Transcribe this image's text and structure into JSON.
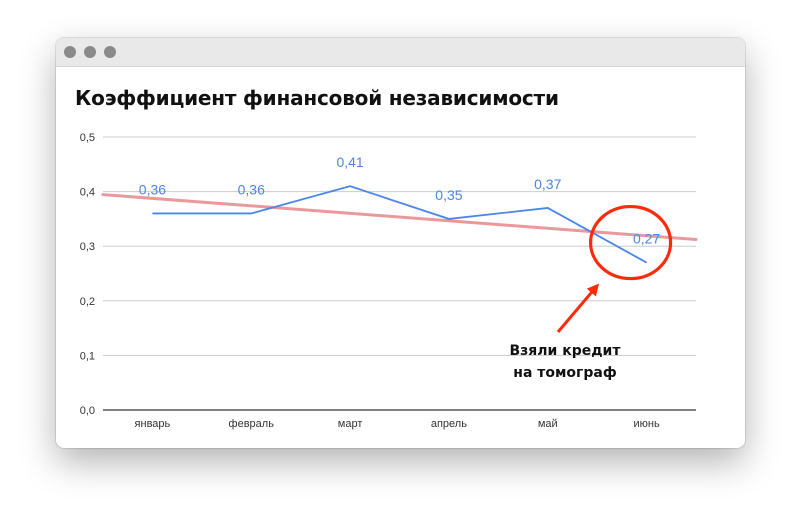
{
  "window": {
    "controls": [
      "close-dot",
      "minimize-dot",
      "zoom-dot"
    ]
  },
  "colors": {
    "series": "#4a86e8",
    "trend": "#e8999c",
    "annotation": "#ff2a0a",
    "grid": "#cccccc",
    "axis": "#333333"
  },
  "chart_data": {
    "type": "line",
    "title": "Коэффициент финансовой независимости",
    "categories": [
      "январь",
      "февраль",
      "март",
      "апрель",
      "май",
      "июнь"
    ],
    "series": [
      {
        "values": [
          0.36,
          0.36,
          0.41,
          0.35,
          0.37,
          0.27
        ],
        "labels": [
          "0,36",
          "0,36",
          "0,41",
          "0,35",
          "0,37",
          "0,27"
        ]
      }
    ],
    "trendline": {
      "type": "linear"
    },
    "ylim": [
      0,
      0.5
    ],
    "yticks": [
      0,
      0.1,
      0.2,
      0.3,
      0.4,
      0.5
    ],
    "ytick_labels": [
      "0,0",
      "0,1",
      "0,2",
      "0,3",
      "0,4",
      "0,5"
    ],
    "grid": true,
    "xlabel": "",
    "ylabel": "",
    "annotation": {
      "lines": [
        "Взяли кредит",
        "на томограф"
      ],
      "target_category": "июнь",
      "shape": "circle",
      "pointer": "arrow"
    }
  }
}
